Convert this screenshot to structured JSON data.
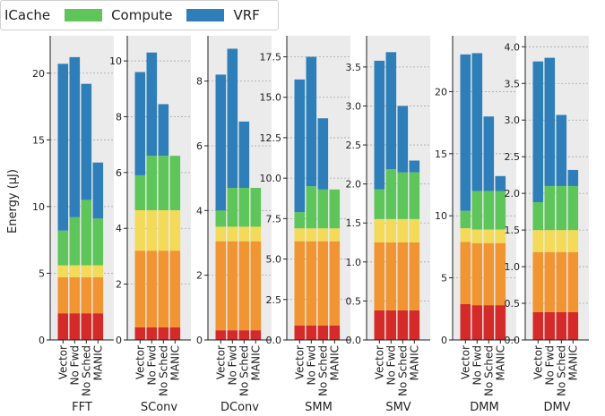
{
  "chart_data": {
    "type": "bar",
    "stacked": true,
    "ylabel": "Energy (μJ)",
    "categories": [
      "Vector",
      "No Fwd",
      "No Sched",
      "MANIC"
    ],
    "legend": {
      "placement": "top-left",
      "entries": [
        {
          "name": "ICache",
          "color": ""
        },
        {
          "name": "Compute",
          "color": "#5dc55a"
        },
        {
          "name": "VRF",
          "color": "#2e7fb9"
        }
      ]
    },
    "segment_colors": [
      "#d42a2a",
      "#f19432",
      "#f3da59",
      "#5dc55a",
      "#2e7fb9"
    ],
    "grid": true,
    "panels": [
      {
        "title": "FFT",
        "ylim": [
          0,
          22.8
        ],
        "yticks": [
          0,
          5,
          10,
          15,
          20
        ],
        "series": [
          [
            2.0,
            2.7,
            0.9,
            2.6,
            12.5
          ],
          [
            2.0,
            2.7,
            0.9,
            3.6,
            12.0
          ],
          [
            2.0,
            2.7,
            0.9,
            4.9,
            8.7
          ],
          [
            2.0,
            2.7,
            0.9,
            3.5,
            4.2
          ]
        ]
      },
      {
        "title": "SConv",
        "ylim": [
          0,
          10.9
        ],
        "yticks": [
          0,
          2,
          4,
          6,
          8,
          10
        ],
        "series": [
          [
            0.45,
            2.75,
            1.45,
            1.25,
            3.7
          ],
          [
            0.45,
            2.75,
            1.45,
            1.95,
            3.7
          ],
          [
            0.45,
            2.75,
            1.45,
            1.95,
            1.85
          ],
          [
            0.45,
            2.75,
            1.45,
            1.95,
            0.0
          ]
        ]
      },
      {
        "title": "DConv",
        "ylim": [
          0,
          9.4
        ],
        "yticks": [
          0,
          2,
          4,
          6,
          8
        ],
        "series": [
          [
            0.3,
            2.75,
            0.45,
            0.5,
            4.2
          ],
          [
            0.3,
            2.75,
            0.45,
            1.2,
            4.3
          ],
          [
            0.3,
            2.75,
            0.45,
            1.2,
            2.05
          ],
          [
            0.3,
            2.75,
            0.45,
            1.2,
            0.0
          ]
        ]
      },
      {
        "title": "SMM",
        "ylim": [
          0,
          18.8
        ],
        "yticks": [
          0.0,
          2.5,
          5.0,
          7.5,
          10.0,
          12.5,
          15.0,
          17.5
        ],
        "series": [
          [
            0.9,
            5.2,
            0.8,
            1.0,
            8.2
          ],
          [
            0.9,
            5.2,
            0.8,
            2.6,
            8.0
          ],
          [
            0.9,
            5.2,
            0.8,
            2.4,
            4.4
          ],
          [
            0.9,
            5.2,
            0.8,
            2.4,
            0.0
          ]
        ]
      },
      {
        "title": "SMV",
        "ylim": [
          0,
          3.9
        ],
        "yticks": [
          0.0,
          0.5,
          1.0,
          1.5,
          2.0,
          2.5,
          3.0,
          3.5
        ],
        "series": [
          [
            0.38,
            0.87,
            0.3,
            0.38,
            1.65
          ],
          [
            0.38,
            0.87,
            0.3,
            0.64,
            1.5
          ],
          [
            0.38,
            0.87,
            0.3,
            0.6,
            0.85
          ],
          [
            0.38,
            0.87,
            0.3,
            0.6,
            0.15
          ]
        ]
      },
      {
        "title": "DMM",
        "ylim": [
          0,
          24.5
        ],
        "yticks": [
          0,
          5,
          10,
          15,
          20
        ],
        "series": [
          [
            2.9,
            5.0,
            1.1,
            1.4,
            12.6
          ],
          [
            2.8,
            5.0,
            1.1,
            3.1,
            11.1
          ],
          [
            2.8,
            5.0,
            1.1,
            3.1,
            6.0
          ],
          [
            2.8,
            5.0,
            1.1,
            3.1,
            1.2
          ]
        ]
      },
      {
        "title": "DMV",
        "ylim": [
          0,
          4.15
        ],
        "yticks": [
          0.0,
          0.5,
          1.0,
          1.5,
          2.0,
          2.5,
          3.0,
          3.5,
          4.0
        ],
        "series": [
          [
            0.38,
            0.82,
            0.3,
            0.38,
            1.92
          ],
          [
            0.38,
            0.82,
            0.3,
            0.6,
            1.75
          ],
          [
            0.38,
            0.82,
            0.3,
            0.6,
            0.97
          ],
          [
            0.38,
            0.82,
            0.3,
            0.6,
            0.22
          ]
        ]
      }
    ]
  }
}
